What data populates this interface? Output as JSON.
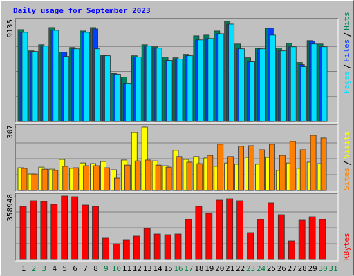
{
  "chart_data": {
    "type": "bar",
    "title": "Daily usage for September 2023",
    "categories": [
      "1",
      "2",
      "3",
      "4",
      "5",
      "6",
      "7",
      "8",
      "9",
      "10",
      "11",
      "12",
      "13",
      "14",
      "15",
      "16",
      "17",
      "18",
      "19",
      "20",
      "21",
      "22",
      "23",
      "24",
      "25",
      "26",
      "27",
      "28",
      "29",
      "30",
      "31"
    ],
    "category_colors": [
      "#000000",
      "#008040",
      "#008040",
      "#000000",
      "#000000",
      "#000000",
      "#000000",
      "#000000",
      "#008040",
      "#008040",
      "#000000",
      "#000000",
      "#000000",
      "#000000",
      "#000000",
      "#008040",
      "#008040",
      "#000000",
      "#000000",
      "#000000",
      "#000000",
      "#000000",
      "#008040",
      "#008040",
      "#000000",
      "#000000",
      "#000000",
      "#000000",
      "#000000",
      "#008040",
      "#008040"
    ],
    "grid": true,
    "panels": [
      {
        "ylim": [
          0,
          9135
        ],
        "yticks": [
          9135
        ],
        "series": [
          {
            "name": "Hits",
            "color": "#00805c",
            "values": [
              8384,
              6445,
              7008,
              8572,
              6319,
              6757,
              8259,
              8572,
              6069,
              4380,
              4067,
              6006,
              7008,
              6820,
              5881,
              5819,
              6132,
              7821,
              7883,
              8259,
              9135,
              7070,
              5819,
              6694,
              8509,
              6694,
              7133,
              5381,
              7383,
              7070,
              null
            ]
          },
          {
            "name": "Files",
            "color": "#0040ff",
            "values": [
              8134,
              6382,
              6882,
              8321,
              6319,
              6632,
              8134,
              8447,
              6006,
              4317,
              3441,
              5881,
              6882,
              6694,
              5569,
              5694,
              6006,
              7445,
              7571,
              8008,
              8885,
              6632,
              5443,
              6632,
              8509,
              6445,
              6820,
              5192,
              7320,
              6820,
              null
            ]
          },
          {
            "name": "Pages",
            "color": "#00e0ff",
            "values": [
              8134,
              6382,
              6882,
              8321,
              5944,
              6632,
              8134,
              6632,
              6006,
              4317,
              3441,
              5881,
              6882,
              6694,
              5569,
              5694,
              6006,
              7445,
              7571,
              8008,
              8885,
              6632,
              5443,
              6632,
              7883,
              6445,
              6820,
              5005,
              7070,
              6820,
              null
            ]
          }
        ]
      },
      {
        "ylim": [
          0,
          307
        ],
        "yticks": [
          307
        ],
        "series": [
          {
            "name": "Visits",
            "color": "#ffff00",
            "values": [
              110,
              80,
              113,
              103,
              150,
              107,
              133,
              130,
              140,
              100,
              147,
              280,
              307,
              143,
              120,
              194,
              150,
              164,
              157,
              117,
              133,
              127,
              160,
              127,
              160,
              97,
              133,
              107,
              137,
              130,
              null
            ]
          },
          {
            "name": "Sites",
            "color": "#ff8000",
            "values": [
              107,
              80,
              103,
              97,
              117,
              110,
              120,
              120,
              110,
              60,
              123,
              143,
              147,
              123,
              113,
              164,
              137,
              130,
              170,
              224,
              164,
              214,
              217,
              197,
              224,
              170,
              237,
              197,
              267,
              254,
              null
            ]
          }
        ]
      },
      {
        "ylim": [
          0,
          358948
        ],
        "yticks": [
          358948
        ],
        "series": [
          {
            "name": "KBytes",
            "color": "#ff0000",
            "values": [
              300418,
              331637,
              327735,
              312128,
              358948,
              355046,
              308226,
              300418,
              120949,
              89736,
              109243,
              132654,
              175572,
              144359,
              140457,
              144359,
              226291,
              300418,
              261409,
              335538,
              343341,
              331637,
              152163,
              226291,
              319931,
              253601,
              105341,
              222389,
              241896,
              226291,
              null
            ]
          }
        ]
      }
    ]
  }
}
